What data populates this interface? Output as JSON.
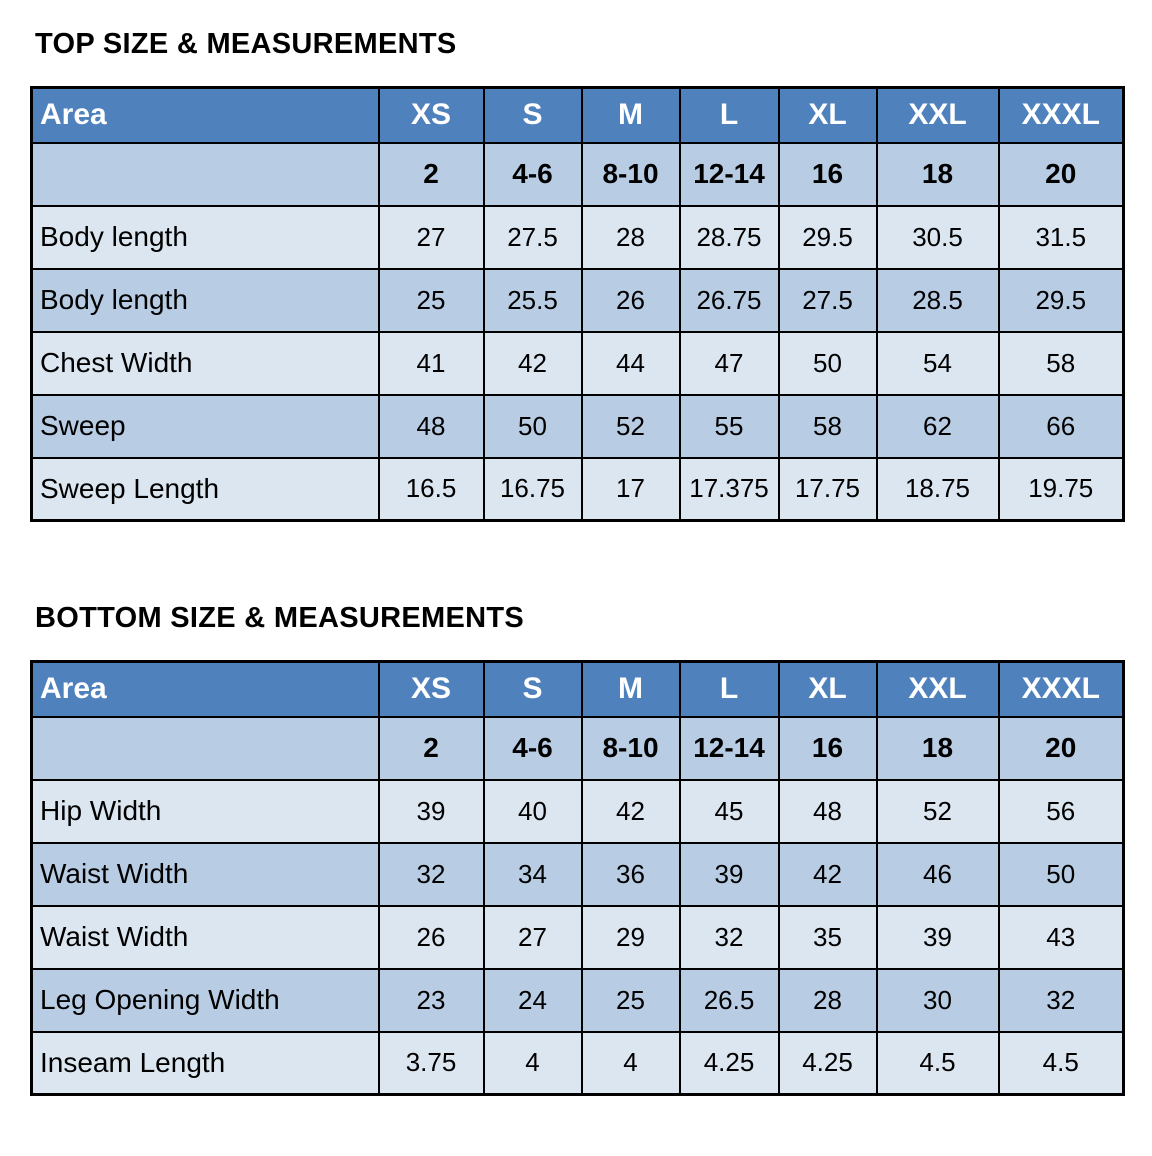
{
  "colors": {
    "header_bg": "#4f81bd",
    "header_text": "#ffffff",
    "band_bg": "#b8cce4",
    "light_bg": "#dce6f1",
    "border": "#000000",
    "title_text": "#000000"
  },
  "tables": [
    {
      "title": "TOP SIZE & MEASUREMENTS",
      "area_header": "Area",
      "size_headers": [
        "XS",
        "S",
        "M",
        "L",
        "XL",
        "XXL",
        "XXXL"
      ],
      "size_numbers": [
        "2",
        "4-6",
        "8-10",
        "12-14",
        "16",
        "18",
        "20"
      ],
      "rows": [
        {
          "label": "Body length",
          "values": [
            "27",
            "27.5",
            "28",
            "28.75",
            "29.5",
            "30.5",
            "31.5"
          ]
        },
        {
          "label": "Body length",
          "values": [
            "25",
            "25.5",
            "26",
            "26.75",
            "27.5",
            "28.5",
            "29.5"
          ]
        },
        {
          "label": "Chest Width",
          "values": [
            "41",
            "42",
            "44",
            "47",
            "50",
            "54",
            "58"
          ]
        },
        {
          "label": "Sweep",
          "values": [
            "48",
            "50",
            "52",
            "55",
            "58",
            "62",
            "66"
          ]
        },
        {
          "label": "Sweep Length",
          "values": [
            "16.5",
            "16.75",
            "17",
            "17.375",
            "17.75",
            "18.75",
            "19.75"
          ]
        }
      ]
    },
    {
      "title": "BOTTOM SIZE & MEASUREMENTS",
      "area_header": "Area",
      "size_headers": [
        "XS",
        "S",
        "M",
        "L",
        "XL",
        "XXL",
        "XXXL"
      ],
      "size_numbers": [
        "2",
        "4-6",
        "8-10",
        "12-14",
        "16",
        "18",
        "20"
      ],
      "rows": [
        {
          "label": "Hip Width",
          "values": [
            "39",
            "40",
            "42",
            "45",
            "48",
            "52",
            "56"
          ]
        },
        {
          "label": "Waist Width",
          "values": [
            "32",
            "34",
            "36",
            "39",
            "42",
            "46",
            "50"
          ]
        },
        {
          "label": "Waist Width",
          "values": [
            "26",
            "27",
            "29",
            "32",
            "35",
            "39",
            "43"
          ]
        },
        {
          "label": "Leg Opening Width",
          "values": [
            "23",
            "24",
            "25",
            "26.5",
            "28",
            "30",
            "32"
          ]
        },
        {
          "label": "Inseam Length",
          "values": [
            "3.75",
            "4",
            "4",
            "4.25",
            "4.25",
            "4.5",
            "4.5"
          ]
        }
      ]
    }
  ]
}
